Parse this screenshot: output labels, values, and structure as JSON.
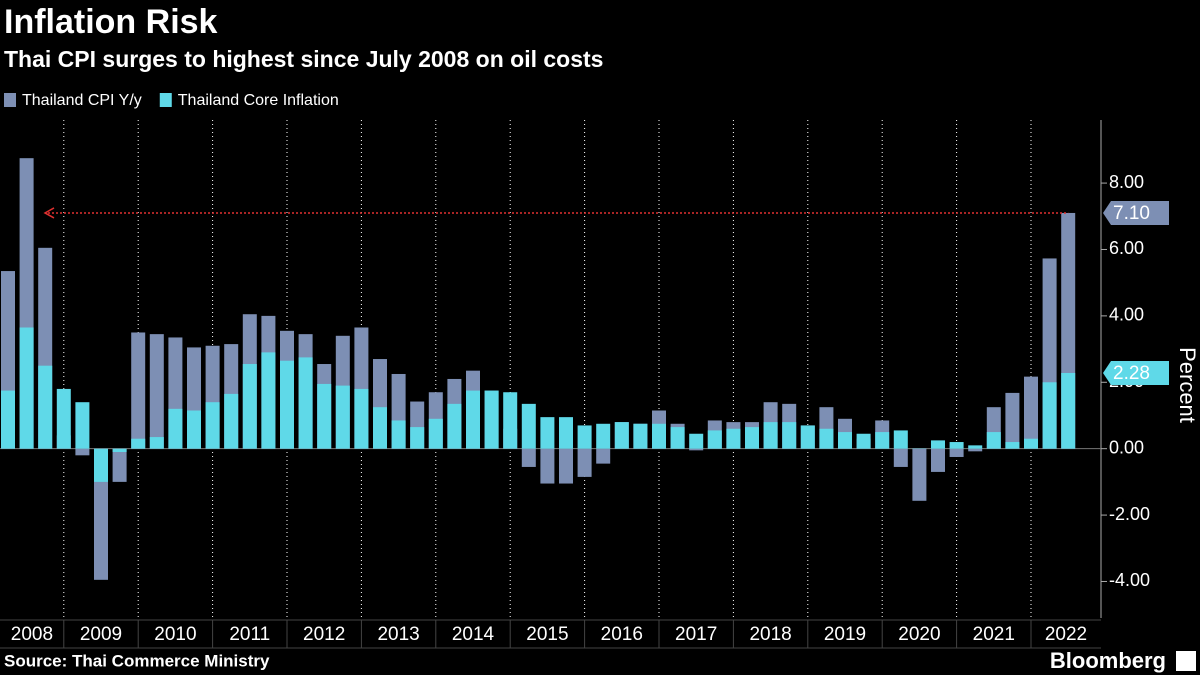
{
  "chart_data": {
    "type": "bar",
    "title": "Inflation Risk",
    "subtitle": "Thai CPI surges to highest since July 2008 on oil costs",
    "y_label": "Percent",
    "source": "Source: Thai Commerce Ministry",
    "brand": "Bloomberg",
    "x_labels": [
      "2008",
      "2009",
      "2010",
      "2011",
      "2012",
      "2013",
      "2014",
      "2015",
      "2016",
      "2017",
      "2018",
      "2019",
      "2020",
      "2021",
      "2022"
    ],
    "series": [
      {
        "name": "Thailand CPI Y/y",
        "color": "#7d8fb4",
        "last_label": "7.10",
        "values": [
          5.35,
          8.75,
          6.05,
          0.4,
          -0.2,
          -3.95,
          -1.0,
          3.5,
          3.45,
          3.35,
          3.05,
          3.1,
          3.15,
          4.05,
          4.0,
          3.55,
          3.45,
          2.55,
          3.4,
          3.65,
          2.7,
          2.25,
          1.42,
          1.7,
          2.1,
          2.35,
          1.75,
          0.6,
          -0.55,
          -1.05,
          -1.05,
          -0.85,
          -0.45,
          0.8,
          0.75,
          1.15,
          0.75,
          -0.05,
          0.85,
          0.8,
          0.8,
          1.4,
          1.35,
          0.7,
          1.25,
          0.9,
          0.3,
          0.85,
          -0.55,
          -1.57,
          -0.7,
          -0.25,
          -0.08,
          1.25,
          1.68,
          2.17,
          5.73,
          7.1
        ]
      },
      {
        "name": "Thailand Core Inflation",
        "color": "#5fd9e8",
        "last_label": "2.28",
        "values": [
          1.75,
          3.65,
          2.5,
          1.8,
          1.4,
          -1.0,
          -0.1,
          0.3,
          0.35,
          1.2,
          1.15,
          1.4,
          1.65,
          2.55,
          2.9,
          2.65,
          2.75,
          1.95,
          1.9,
          1.8,
          1.25,
          0.85,
          0.65,
          0.9,
          1.35,
          1.75,
          1.75,
          1.7,
          1.35,
          0.95,
          0.95,
          0.7,
          0.75,
          0.8,
          0.75,
          0.75,
          0.65,
          0.45,
          0.55,
          0.6,
          0.65,
          0.8,
          0.8,
          0.7,
          0.6,
          0.5,
          0.45,
          0.5,
          0.55,
          0.01,
          0.25,
          0.2,
          0.1,
          0.5,
          0.2,
          0.3,
          2.0,
          2.28
        ]
      }
    ],
    "ylim": [
      -5.1,
      9.9
    ],
    "yticks": [
      {
        "value": -4,
        "label": "-4.00"
      },
      {
        "value": -2,
        "label": "-2.00"
      },
      {
        "value": 0,
        "label": "0.00"
      },
      {
        "value": 2,
        "label": "2.00"
      },
      {
        "value": 4,
        "label": "4.00"
      },
      {
        "value": 6,
        "label": "6.00"
      },
      {
        "value": 8,
        "label": "8.00"
      }
    ],
    "legend": "top-left"
  }
}
